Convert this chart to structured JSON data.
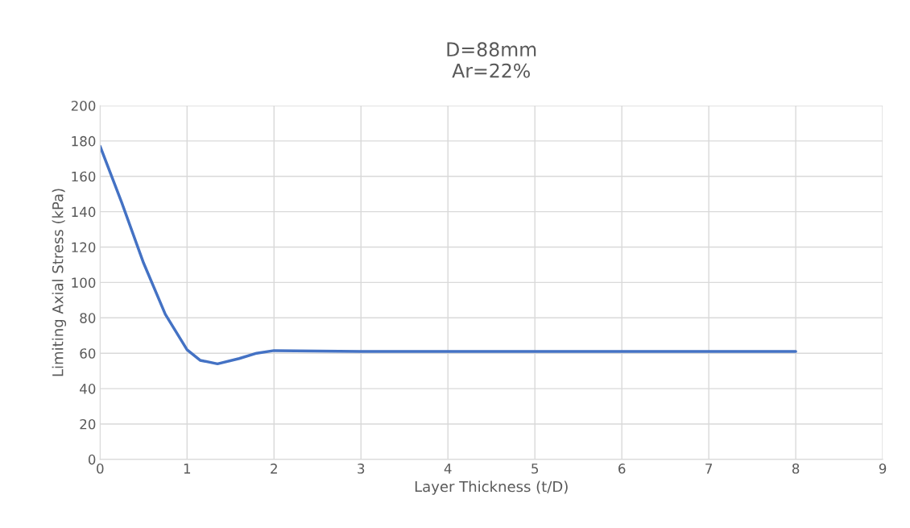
{
  "chart_data": {
    "type": "line",
    "title": "D=88mm\nAr=22%",
    "xlabel": "Layer Thickness (t/D)",
    "ylabel": "Limiting Axial Stress (kPa)",
    "series": [
      {
        "color": "#4472c4",
        "x": [
          0,
          0.25,
          0.5,
          0.75,
          1,
          1.15,
          1.35,
          1.6,
          1.8,
          2,
          3,
          4,
          5,
          6,
          7,
          8
        ],
        "values": [
          177,
          145,
          111,
          82,
          62,
          56,
          54,
          57,
          60,
          61.5,
          61,
          61,
          61,
          61,
          61,
          61
        ]
      }
    ],
    "xlim": [
      0,
      9
    ],
    "xticks": [
      0,
      1,
      2,
      3,
      4,
      5,
      6,
      7,
      8,
      9
    ],
    "ylim": [
      0,
      200
    ],
    "yticks": [
      0,
      20,
      40,
      60,
      80,
      100,
      120,
      140,
      160,
      180,
      200
    ],
    "grid": true,
    "marker": "none",
    "line_style": "solid"
  }
}
